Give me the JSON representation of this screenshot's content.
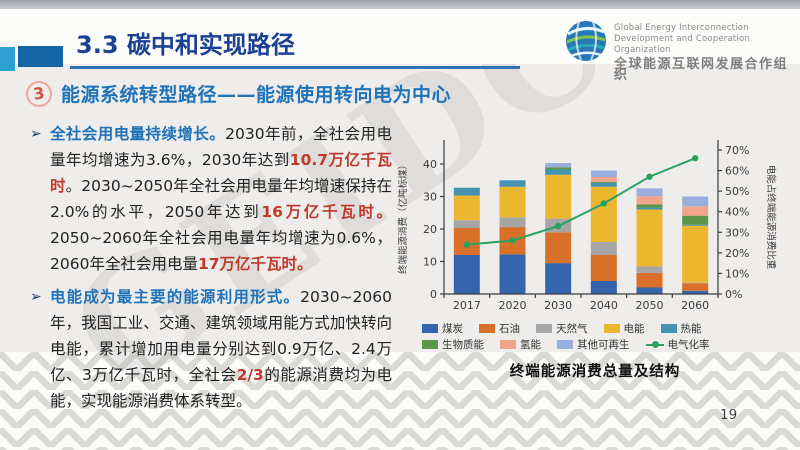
{
  "header": {
    "title": "3.3 碳中和实现路径",
    "logo": {
      "line1": "Global Energy Interconnection",
      "line2": "Development and Cooperation Organization",
      "line3": "全球能源互联网发展合作组织"
    }
  },
  "section": {
    "badge": "3",
    "heading": "能源系统转型路径——能源使用转向电为中心"
  },
  "bullets": [
    {
      "segments": [
        {
          "style": "lead",
          "text": "全社会用电量持续增长。"
        },
        {
          "style": "normal",
          "text": "2030年前，全社会用电量年均增速为3.6%，2030年达到"
        },
        {
          "style": "em",
          "text": "10.7万亿千瓦时"
        },
        {
          "style": "normal",
          "text": "。2030~2050年全社会用电量年均增速保持在2.0%的水平，2050年达到"
        },
        {
          "style": "em",
          "text": "16万亿千瓦时。"
        },
        {
          "style": "normal",
          "text": "2050~2060年全社会用电量年均增速为0.6%，2060年全社会用电量"
        },
        {
          "style": "em",
          "text": "17万亿千瓦时。"
        }
      ]
    },
    {
      "segments": [
        {
          "style": "lead",
          "text": "电能成为最主要的能源利用形式。"
        },
        {
          "style": "normal",
          "text": "2030~2060年，我国工业、交通、建筑领域用能方式加快转向电能，累计增加用电量分别达到0.9万亿、2.4万亿、3万亿千瓦时，全社会"
        },
        {
          "style": "em",
          "text": "2/3"
        },
        {
          "style": "normal",
          "text": "的能源消费均为电能，实现能源消费体系转型。"
        }
      ]
    }
  ],
  "watermark": "GEIDCO",
  "page_number": "19",
  "chart_data": {
    "type": "bar",
    "stacked": true,
    "title": "终端能源消费总量及结构",
    "categories": [
      "2017",
      "2020",
      "2030",
      "2040",
      "2050",
      "2060"
    ],
    "series": [
      {
        "name": "煤炭",
        "color": "#3465ac",
        "values": [
          12,
          12.2,
          9.5,
          4,
          2,
          1
        ]
      },
      {
        "name": "石油",
        "color": "#d9702a",
        "values": [
          8.3,
          8.4,
          9.5,
          8,
          4.5,
          2.3
        ]
      },
      {
        "name": "天然气",
        "color": "#a6a6a6",
        "values": [
          2.4,
          3,
          4.2,
          4,
          2,
          0.2
        ]
      },
      {
        "name": "电能",
        "color": "#eab72e",
        "values": [
          7.6,
          9.4,
          13.5,
          17,
          17.5,
          17.5
        ]
      },
      {
        "name": "热能",
        "color": "#4393b1",
        "values": [
          2.4,
          2,
          1.6,
          1.2,
          0.6,
          0.3
        ]
      },
      {
        "name": "生物质能",
        "color": "#5d9648",
        "values": [
          0,
          0,
          0.7,
          0.3,
          1,
          2.8
        ]
      },
      {
        "name": "氢能",
        "color": "#f0a58a",
        "values": [
          0,
          0,
          0,
          1.5,
          2.5,
          2.9
        ]
      },
      {
        "name": "其他可再生",
        "color": "#9aaede",
        "values": [
          0,
          0,
          1.3,
          2,
          2.4,
          3
        ]
      }
    ],
    "line_series": {
      "name": "电气化率",
      "color": "#2aa263",
      "axis": "right",
      "values": [
        24,
        26,
        33,
        44,
        57,
        66
      ]
    },
    "left_axis": {
      "label": "终端能源消费（亿吨标煤）",
      "ticks": [
        0,
        10,
        20,
        30,
        40
      ],
      "max": 45
    },
    "right_axis": {
      "label": "电能占终端能源消费比重",
      "ticks": [
        "0%",
        "10%",
        "20%",
        "30%",
        "40%",
        "50%",
        "60%",
        "70%"
      ],
      "max": 70
    },
    "legend_position": "bottom",
    "grid": false
  }
}
